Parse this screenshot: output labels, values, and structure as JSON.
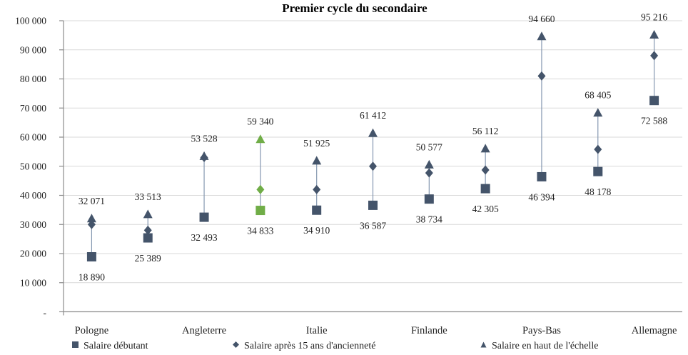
{
  "chart_data": {
    "type": "scatter",
    "title": "Premier cycle du secondaire",
    "y_axis": {
      "min": 0,
      "max": 100000,
      "step": 10000,
      "tick_labels": [
        "-",
        "10 000",
        "20 000",
        "30 000",
        "40 000",
        "50 000",
        "60 000",
        "70 000",
        "80 000",
        "90 000",
        "100 000"
      ]
    },
    "x_axis": {
      "visible_tick_labels": [
        "Pologne",
        "Angleterre",
        "Italie",
        "Finlande",
        "Pays-Bas",
        "Allemagne"
      ],
      "label_every": 2
    },
    "series": [
      {
        "name": "Salaire débutant",
        "marker": "square"
      },
      {
        "name": "Salaire après 15 ans d'ancienneté",
        "marker": "diamond"
      },
      {
        "name": "Salaire en haut de l'échelle",
        "marker": "triangle"
      }
    ],
    "categories": [
      {
        "country": "Pologne",
        "start": 18890,
        "after_15_years": 30000,
        "top_of_scale": 32071,
        "start_label": "18 890",
        "top_label": "32 071",
        "highlight": false
      },
      {
        "country": "",
        "start": 25389,
        "after_15_years": 28000,
        "top_of_scale": 33513,
        "start_label": "25 389",
        "top_label": "33 513",
        "highlight": false
      },
      {
        "country": "Angleterre",
        "start": 32493,
        "after_15_years": 53000,
        "top_of_scale": 53528,
        "start_label": "32 493",
        "top_label": "53 528",
        "highlight": false
      },
      {
        "country": "",
        "start": 34833,
        "after_15_years": 42000,
        "top_of_scale": 59340,
        "start_label": "34 833",
        "top_label": "59 340",
        "highlight": true
      },
      {
        "country": "Italie",
        "start": 34910,
        "after_15_years": 42000,
        "top_of_scale": 51925,
        "start_label": "34 910",
        "top_label": "51 925",
        "highlight": false
      },
      {
        "country": "",
        "start": 36587,
        "after_15_years": 50000,
        "top_of_scale": 61412,
        "start_label": "36 587",
        "top_label": "61 412",
        "highlight": false
      },
      {
        "country": "Finlande",
        "start": 38734,
        "after_15_years": 47700,
        "top_of_scale": 50577,
        "start_label": "38 734",
        "top_label": "50 577",
        "highlight": false
      },
      {
        "country": "",
        "start": 42305,
        "after_15_years": 48700,
        "top_of_scale": 56112,
        "start_label": "42 305",
        "top_label": "56 112",
        "highlight": false
      },
      {
        "country": "Pays-Bas",
        "start": 46394,
        "after_15_years": 81000,
        "top_of_scale": 94660,
        "start_label": "46 394",
        "top_label": "94 660",
        "highlight": false
      },
      {
        "country": "",
        "start": 48178,
        "after_15_years": 55800,
        "top_of_scale": 68405,
        "start_label": "48 178",
        "top_label": "68 405",
        "highlight": false
      },
      {
        "country": "Allemagne",
        "start": 72588,
        "after_15_years": 88000,
        "top_of_scale": 95216,
        "start_label": "72 588",
        "top_label": "95 216",
        "highlight": false
      }
    ],
    "colors": {
      "marker": "#44546A",
      "highlight": "#70AD47",
      "connector": "#8497B0",
      "gridline": "#D9D9D9",
      "axis": "#8C8C8C",
      "label_text": "#1F1F1F",
      "title_text": "#000000"
    },
    "legend_position": "bottom"
  }
}
